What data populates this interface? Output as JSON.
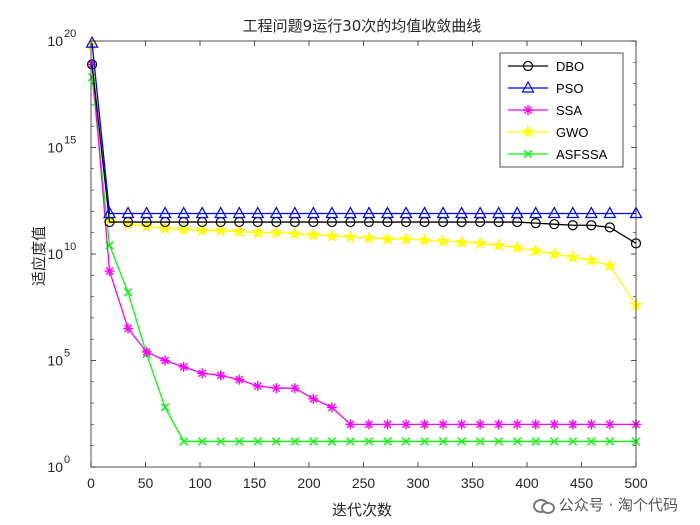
{
  "chart_data": {
    "type": "line",
    "title": "工程问题9运行30次的均值收敛曲线",
    "xlabel": "迭代次数",
    "ylabel": "适应度值",
    "yscale": "log",
    "xlim": [
      0,
      500
    ],
    "ylim_exp": [
      0,
      20
    ],
    "x_ticks": [
      0,
      50,
      100,
      150,
      200,
      250,
      300,
      350,
      400,
      450,
      500
    ],
    "y_ticks": [
      {
        "base": "10",
        "exp": "0",
        "value_exp": 0
      },
      {
        "base": "10",
        "exp": "5",
        "value_exp": 5
      },
      {
        "base": "10",
        "exp": "10",
        "value_exp": 10
      },
      {
        "base": "10",
        "exp": "15",
        "value_exp": 15
      },
      {
        "base": "10",
        "exp": "20",
        "value_exp": 20
      }
    ],
    "legend_position": "top-right",
    "x": [
      1,
      17,
      34,
      51,
      68,
      85,
      102,
      119,
      136,
      153,
      170,
      187,
      204,
      221,
      238,
      255,
      272,
      289,
      306,
      323,
      340,
      357,
      374,
      391,
      408,
      425,
      442,
      459,
      476,
      500
    ],
    "series": [
      {
        "name": "DBO",
        "color": "#000000",
        "marker": "circle",
        "log10_values": [
          18.9,
          11.5,
          11.5,
          11.5,
          11.5,
          11.5,
          11.5,
          11.5,
          11.5,
          11.5,
          11.5,
          11.5,
          11.5,
          11.5,
          11.5,
          11.5,
          11.5,
          11.5,
          11.5,
          11.5,
          11.5,
          11.5,
          11.5,
          11.5,
          11.45,
          11.4,
          11.35,
          11.35,
          11.25,
          10.5
        ]
      },
      {
        "name": "PSO",
        "color": "#0000ff",
        "marker": "triangle",
        "log10_values": [
          19.9,
          11.9,
          11.9,
          11.9,
          11.9,
          11.9,
          11.9,
          11.9,
          11.9,
          11.9,
          11.9,
          11.9,
          11.9,
          11.9,
          11.9,
          11.9,
          11.9,
          11.9,
          11.9,
          11.9,
          11.9,
          11.9,
          11.9,
          11.9,
          11.9,
          11.9,
          11.9,
          11.9,
          11.9,
          11.9
        ]
      },
      {
        "name": "SSA",
        "color": "#ff00ff",
        "marker": "star",
        "log10_values": [
          18.9,
          9.2,
          6.5,
          5.4,
          5.0,
          4.7,
          4.4,
          4.3,
          4.1,
          3.8,
          3.7,
          3.7,
          3.2,
          2.8,
          2.0,
          2.0,
          2.0,
          2.0,
          2.0,
          2.0,
          2.0,
          2.0,
          2.0,
          2.0,
          2.0,
          2.0,
          2.0,
          2.0,
          2.0,
          2.0
        ]
      },
      {
        "name": "GWO",
        "color": "#ffff00",
        "marker": "pentagram",
        "log10_values": [
          19.8,
          11.6,
          11.4,
          11.3,
          11.2,
          11.15,
          11.1,
          11.1,
          11.05,
          11.0,
          11.0,
          10.95,
          10.9,
          10.85,
          10.8,
          10.75,
          10.7,
          10.7,
          10.65,
          10.6,
          10.55,
          10.5,
          10.4,
          10.3,
          10.15,
          10.0,
          9.85,
          9.7,
          9.45,
          7.6
        ]
      },
      {
        "name": "ASFSSA",
        "color": "#00ff00",
        "marker": "x",
        "log10_values": [
          18.3,
          10.4,
          8.2,
          5.3,
          2.8,
          1.2,
          1.2,
          1.2,
          1.2,
          1.2,
          1.2,
          1.2,
          1.2,
          1.2,
          1.2,
          1.2,
          1.2,
          1.2,
          1.2,
          1.2,
          1.2,
          1.2,
          1.2,
          1.2,
          1.2,
          1.2,
          1.2,
          1.2,
          1.2,
          1.2
        ]
      }
    ]
  },
  "watermark": {
    "text": "公众号 · 淘个代码",
    "icon": "wechat-icon"
  }
}
